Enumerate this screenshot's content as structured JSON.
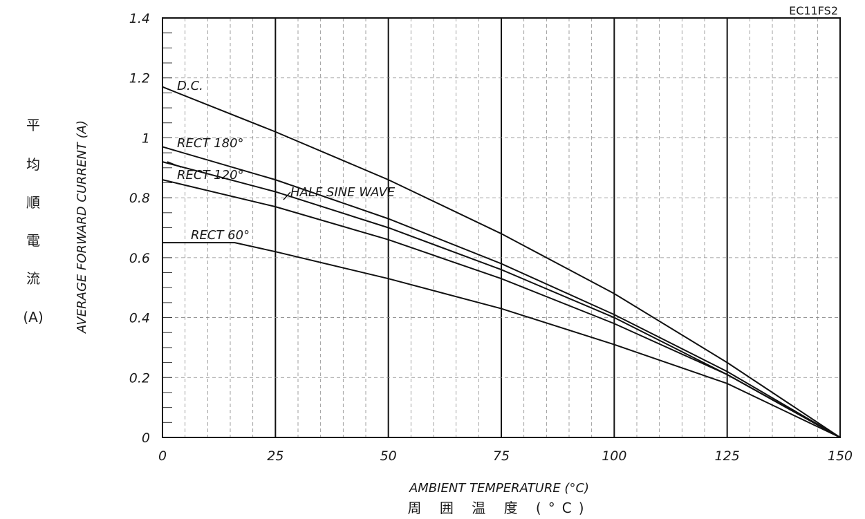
{
  "chart_data": {
    "type": "line",
    "model": "EC11FS2",
    "xlabel": "AMBIENT TEMPERATURE (°C)",
    "xlabel_jp": "周 囲 温 度 (°C)",
    "ylabel": "AVERAGE FORWARD CURRENT (A)",
    "ylabel_jp": [
      "平",
      "均",
      "順",
      "電",
      "流",
      "(A)"
    ],
    "xlim": [
      0,
      150
    ],
    "ylim": [
      0,
      1.4
    ],
    "x_ticks": [
      "0",
      "25",
      "50",
      "75",
      "100",
      "125",
      "150"
    ],
    "y_ticks": [
      "0",
      "0.2",
      "0.4",
      "0.6",
      "0.8",
      "1",
      "1.2",
      "1.4"
    ],
    "grid": true,
    "series": [
      {
        "name": "D.C.",
        "points": [
          [
            0,
            1.17
          ],
          [
            25,
            1.02
          ],
          [
            50,
            0.86
          ],
          [
            75,
            0.68
          ],
          [
            100,
            0.48
          ],
          [
            125,
            0.25
          ],
          [
            150,
            0.0
          ]
        ]
      },
      {
        "name": "RECT 180°",
        "points": [
          [
            0,
            0.97
          ],
          [
            25,
            0.86
          ],
          [
            50,
            0.73
          ],
          [
            75,
            0.58
          ],
          [
            100,
            0.41
          ],
          [
            125,
            0.22
          ],
          [
            150,
            0.0
          ]
        ]
      },
      {
        "name": "RECT 120°",
        "points": [
          [
            0,
            0.92
          ],
          [
            25,
            0.82
          ],
          [
            50,
            0.7
          ],
          [
            75,
            0.56
          ],
          [
            100,
            0.4
          ],
          [
            125,
            0.21
          ],
          [
            150,
            0.0
          ]
        ]
      },
      {
        "name": "HALF SINE WAVE",
        "points": [
          [
            0,
            0.86
          ],
          [
            25,
            0.77
          ],
          [
            50,
            0.66
          ],
          [
            75,
            0.53
          ],
          [
            100,
            0.38
          ],
          [
            125,
            0.21
          ],
          [
            150,
            0.0
          ]
        ]
      },
      {
        "name": "RECT 60°",
        "points": [
          [
            0,
            0.65
          ],
          [
            16,
            0.65
          ],
          [
            25,
            0.62
          ],
          [
            50,
            0.53
          ],
          [
            75,
            0.43
          ],
          [
            100,
            0.31
          ],
          [
            125,
            0.18
          ],
          [
            150,
            0.0
          ]
        ]
      }
    ]
  }
}
